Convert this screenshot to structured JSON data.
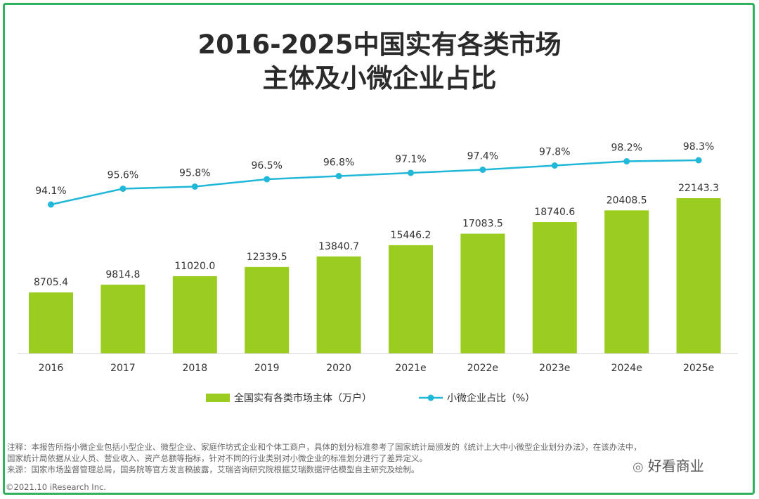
{
  "title_lines": [
    "2016-2025中国实有各类市场",
    "主体及小微企业占比"
  ],
  "chart_data": {
    "type": "bar",
    "categories": [
      "2016",
      "2017",
      "2018",
      "2019",
      "2020",
      "2021e",
      "2022e",
      "2023e",
      "2024e",
      "2025e"
    ],
    "series": [
      {
        "name": "全国实有各类市场主体（万户）",
        "type": "bar",
        "color": "#9acd1f",
        "values": [
          8705.4,
          9814.8,
          11020.0,
          12339.5,
          13840.7,
          15446.2,
          17083.5,
          18740.6,
          20408.5,
          22143.3
        ],
        "labels": [
          "8705.4",
          "9814.8",
          "11020.0",
          "12339.5",
          "13840.7",
          "15446.2",
          "17083.5",
          "18740.6",
          "20408.5",
          "22143.3"
        ]
      },
      {
        "name": "小微企业占比（%）",
        "type": "line",
        "color": "#21b7d8",
        "values": [
          94.1,
          95.6,
          95.8,
          96.5,
          96.8,
          97.1,
          97.4,
          97.8,
          98.2,
          98.3
        ],
        "labels": [
          "94.1%",
          "95.6%",
          "95.8%",
          "96.5%",
          "96.8%",
          "97.1%",
          "97.4%",
          "97.8%",
          "98.2%",
          "98.3%"
        ]
      }
    ],
    "legend_position": "bottom-center",
    "grid": false
  },
  "notes": [
    "注释：本报告所指小微企业包括小型企业、微型企业、家庭作坊式企业和个体工商户，具体的划分标准参考了国家统计局颁发的《统计上大中小微型企业划分办法》，在该办法中，",
    "国家统计局依据从业人员、营业收入、资产总额等指标，针对不同的行业类别对小微企业的标准划分进行了差异定义。",
    "来源：国家市场监督管理总局，国务院等官方发言稿披露，艾瑞咨询研究院根据艾瑞数据评估模型自主研究及绘制。"
  ],
  "copyright": "©2021.10 iResearch Inc.",
  "watermark": "好看商业",
  "watermark_icon": "wechat-icon"
}
